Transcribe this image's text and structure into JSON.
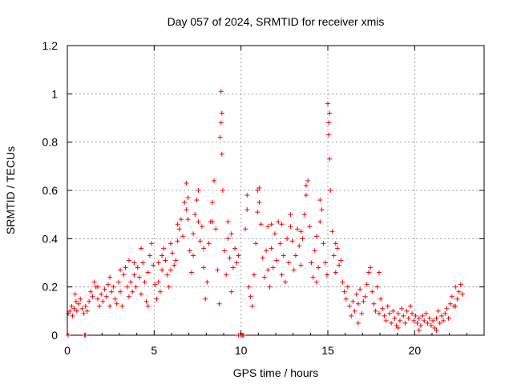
{
  "chart_data": {
    "type": "scatter",
    "title": "Day 057 of 2024, SRMTID for receiver xmis",
    "xlabel": "GPS time / hours",
    "ylabel": "SRMTID / TECUs",
    "xlim": [
      0,
      24
    ],
    "ylim": [
      0,
      1.2
    ],
    "xticks": [
      0,
      5,
      10,
      15,
      20
    ],
    "xtick_labels": [
      "0",
      "5",
      "10",
      "15",
      "20"
    ],
    "yticks": [
      0,
      0.2,
      0.4,
      0.6,
      0.8,
      1,
      1.2
    ],
    "ytick_labels": [
      "0",
      "0.2",
      "0.4",
      "0.6",
      "0.8",
      "1",
      "1.2"
    ],
    "grid": true,
    "marker": "+",
    "color": "#ff0000",
    "series": [
      {
        "name": "SRMTID",
        "points": [
          [
            0.05,
            0.09
          ],
          [
            0.15,
            0.1
          ],
          [
            0.25,
            0.12
          ],
          [
            0.3,
            0.08
          ],
          [
            0.4,
            0.11
          ],
          [
            0.5,
            0.14
          ],
          [
            0.55,
            0.1
          ],
          [
            0.65,
            0.13
          ],
          [
            0.75,
            0.15
          ],
          [
            0.85,
            0.11
          ],
          [
            0.95,
            0.09
          ],
          [
            1.05,
            0.12
          ],
          [
            1.15,
            0.1
          ],
          [
            1.25,
            0.14
          ],
          [
            1.35,
            0.18
          ],
          [
            1.45,
            0.16
          ],
          [
            1.55,
            0.22
          ],
          [
            1.65,
            0.2
          ],
          [
            1.75,
            0.15
          ],
          [
            1.85,
            0.12
          ],
          [
            1.95,
            0.17
          ],
          [
            2.05,
            0.14
          ],
          [
            2.15,
            0.19
          ],
          [
            2.25,
            0.16
          ],
          [
            2.35,
            0.21
          ],
          [
            2.45,
            0.24
          ],
          [
            2.55,
            0.18
          ],
          [
            2.65,
            0.2
          ],
          [
            2.75,
            0.15
          ],
          [
            2.85,
            0.13
          ],
          [
            2.95,
            0.22
          ],
          [
            3.05,
            0.18
          ],
          [
            3.15,
            0.12
          ],
          [
            3.25,
            0.25
          ],
          [
            3.35,
            0.28
          ],
          [
            3.45,
            0.2
          ],
          [
            3.55,
            0.31
          ],
          [
            3.65,
            0.22
          ],
          [
            3.75,
            0.18
          ],
          [
            3.85,
            0.25
          ],
          [
            3.95,
            0.2
          ],
          [
            4.05,
            0.28
          ],
          [
            4.15,
            0.24
          ],
          [
            4.25,
            0.17
          ],
          [
            4.35,
            0.3
          ],
          [
            4.45,
            0.22
          ],
          [
            4.55,
            0.14
          ],
          [
            4.65,
            0.26
          ],
          [
            4.75,
            0.33
          ],
          [
            4.85,
            0.38
          ],
          [
            4.95,
            0.29
          ],
          [
            5.05,
            0.21
          ],
          [
            5.15,
            0.15
          ],
          [
            5.25,
            0.22
          ],
          [
            5.35,
            0.18
          ],
          [
            5.45,
            0.27
          ],
          [
            5.55,
            0.36
          ],
          [
            5.65,
            0.31
          ],
          [
            5.75,
            0.25
          ],
          [
            5.85,
            0.2
          ],
          [
            5.95,
            0.38
          ],
          [
            6.05,
            0.34
          ],
          [
            6.15,
            0.29
          ],
          [
            6.25,
            0.31
          ],
          [
            6.35,
            0.39
          ],
          [
            6.45,
            0.44
          ],
          [
            6.55,
            0.48
          ],
          [
            6.65,
            0.41
          ],
          [
            6.75,
            0.55
          ],
          [
            6.85,
            0.63
          ],
          [
            6.95,
            0.48
          ],
          [
            7.05,
            0.35
          ],
          [
            7.15,
            0.26
          ],
          [
            7.25,
            0.42
          ],
          [
            7.35,
            0.5
          ],
          [
            7.45,
            0.56
          ],
          [
            7.55,
            0.47
          ],
          [
            7.65,
            0.39
          ],
          [
            7.75,
            0.45
          ],
          [
            7.85,
            0.28
          ],
          [
            7.95,
            0.15
          ],
          [
            8.05,
            0.22
          ],
          [
            8.15,
            0.38
          ],
          [
            8.25,
            0.47
          ],
          [
            8.35,
            0.55
          ],
          [
            8.45,
            0.64
          ],
          [
            8.55,
            0.44
          ],
          [
            8.65,
            0.27
          ],
          [
            8.75,
            0.13
          ],
          [
            8.8,
            0.82
          ],
          [
            8.85,
            1.01
          ],
          [
            8.9,
            0.92
          ],
          [
            8.95,
            0.6
          ],
          [
            9.05,
            0.35
          ],
          [
            9.15,
            0.25
          ],
          [
            9.25,
            0.4
          ],
          [
            9.35,
            0.32
          ],
          [
            9.45,
            0.18
          ],
          [
            9.55,
            0.28
          ],
          [
            9.65,
            0.36
          ],
          [
            9.75,
            0.3
          ],
          [
            9.85,
            0.33
          ],
          [
            9.95,
            0.0
          ],
          [
            10.05,
            0.0
          ],
          [
            10.15,
            0.0
          ],
          [
            10.25,
            0.44
          ],
          [
            10.35,
            0.52
          ],
          [
            10.45,
            0.2
          ],
          [
            10.55,
            0.16
          ],
          [
            10.65,
            0.12
          ],
          [
            10.75,
            0.25
          ],
          [
            10.85,
            0.38
          ],
          [
            10.95,
            0.6
          ],
          [
            11.05,
            0.55
          ],
          [
            11.15,
            0.46
          ],
          [
            11.25,
            0.32
          ],
          [
            11.35,
            0.24
          ],
          [
            11.45,
            0.35
          ],
          [
            11.55,
            0.27
          ],
          [
            11.65,
            0.2
          ],
          [
            11.75,
            0.36
          ],
          [
            11.85,
            0.28
          ],
          [
            11.95,
            0.42
          ],
          [
            12.05,
            0.31
          ],
          [
            12.15,
            0.47
          ],
          [
            12.25,
            0.38
          ],
          [
            12.35,
            0.25
          ],
          [
            12.45,
            0.33
          ],
          [
            12.55,
            0.22
          ],
          [
            12.65,
            0.4
          ],
          [
            12.75,
            0.3
          ],
          [
            12.85,
            0.45
          ],
          [
            12.95,
            0.39
          ],
          [
            13.05,
            0.27
          ],
          [
            13.15,
            0.33
          ],
          [
            13.25,
            0.44
          ],
          [
            13.35,
            0.37
          ],
          [
            13.45,
            0.29
          ],
          [
            13.55,
            0.4
          ],
          [
            13.65,
            0.5
          ],
          [
            13.75,
            0.58
          ],
          [
            13.85,
            0.64
          ],
          [
            13.95,
            0.45
          ],
          [
            14.05,
            0.3
          ],
          [
            14.15,
            0.24
          ],
          [
            14.25,
            0.35
          ],
          [
            14.35,
            0.22
          ],
          [
            14.45,
            0.28
          ],
          [
            14.55,
            0.56
          ],
          [
            14.65,
            0.52
          ],
          [
            14.75,
            0.38
          ],
          [
            14.85,
            0.3
          ],
          [
            14.95,
            0.25
          ],
          [
            15.0,
            0.96
          ],
          [
            15.05,
            0.88
          ],
          [
            15.1,
            0.73
          ],
          [
            15.15,
            0.6
          ],
          [
            15.25,
            0.43
          ],
          [
            15.35,
            0.33
          ],
          [
            15.45,
            0.26
          ],
          [
            15.55,
            0.36
          ],
          [
            15.65,
            0.29
          ],
          [
            15.75,
            0.31
          ],
          [
            15.85,
            0.22
          ],
          [
            15.95,
            0.18
          ],
          [
            16.05,
            0.15
          ],
          [
            16.15,
            0.2
          ],
          [
            16.25,
            0.12
          ],
          [
            16.35,
            0.08
          ],
          [
            16.45,
            0.14
          ],
          [
            16.55,
            0.1
          ],
          [
            16.65,
            0.17
          ],
          [
            16.75,
            0.13
          ],
          [
            16.85,
            0.19
          ],
          [
            16.95,
            0.09
          ],
          [
            17.05,
            0.14
          ],
          [
            17.15,
            0.16
          ],
          [
            17.25,
            0.21
          ],
          [
            17.35,
            0.26
          ],
          [
            17.45,
            0.28
          ],
          [
            17.55,
            0.18
          ],
          [
            17.65,
            0.13
          ],
          [
            17.75,
            0.1
          ],
          [
            17.85,
            0.2
          ],
          [
            17.95,
            0.26
          ],
          [
            18.05,
            0.15
          ],
          [
            18.15,
            0.11
          ],
          [
            18.25,
            0.08
          ],
          [
            18.35,
            0.06
          ],
          [
            18.45,
            0.12
          ],
          [
            18.55,
            0.09
          ],
          [
            18.65,
            0.05
          ],
          [
            18.75,
            0.1
          ],
          [
            18.85,
            0.07
          ],
          [
            18.95,
            0.04
          ],
          [
            19.05,
            0.09
          ],
          [
            19.15,
            0.06
          ],
          [
            19.25,
            0.11
          ],
          [
            19.35,
            0.08
          ],
          [
            19.45,
            0.05
          ],
          [
            19.55,
            0.1
          ],
          [
            19.65,
            0.07
          ],
          [
            19.75,
            0.12
          ],
          [
            19.85,
            0.09
          ],
          [
            19.95,
            0.06
          ],
          [
            20.05,
            0.08
          ],
          [
            20.15,
            0.05
          ],
          [
            20.25,
            0.07
          ],
          [
            20.35,
            0.04
          ],
          [
            20.45,
            0.08
          ],
          [
            20.55,
            0.06
          ],
          [
            20.65,
            0.09
          ],
          [
            20.75,
            0.05
          ],
          [
            20.85,
            0.07
          ],
          [
            20.95,
            0.04
          ],
          [
            21.05,
            0.06
          ],
          [
            21.15,
            0.03
          ],
          [
            21.25,
            0.07
          ],
          [
            21.35,
            0.1
          ],
          [
            21.45,
            0.05
          ],
          [
            21.55,
            0.08
          ],
          [
            21.65,
            0.06
          ],
          [
            21.75,
            0.09
          ],
          [
            21.85,
            0.11
          ],
          [
            21.95,
            0.07
          ],
          [
            22.05,
            0.13
          ],
          [
            22.15,
            0.16
          ],
          [
            22.25,
            0.12
          ],
          [
            22.35,
            0.2
          ],
          [
            22.45,
            0.15
          ],
          [
            22.55,
            0.18
          ],
          [
            22.65,
            0.21
          ],
          [
            22.75,
            0.17
          ],
          [
            0.05,
            0.0
          ],
          [
            1.0,
            0.0
          ],
          [
            1.05,
            0.0
          ],
          [
            9.85,
            0.0
          ],
          [
            10.1,
            0.0
          ],
          [
            3.85,
            0.3
          ],
          [
            4.25,
            0.36
          ],
          [
            5.45,
            0.33
          ],
          [
            6.35,
            0.46
          ],
          [
            6.95,
            0.57
          ],
          [
            7.55,
            0.6
          ],
          [
            8.35,
            0.47
          ],
          [
            8.85,
            0.88
          ],
          [
            8.9,
            0.75
          ],
          [
            10.35,
            0.58
          ],
          [
            11.05,
            0.61
          ],
          [
            11.55,
            0.45
          ],
          [
            12.35,
            0.46
          ],
          [
            13.75,
            0.62
          ],
          [
            14.55,
            0.47
          ],
          [
            15.05,
            0.83
          ],
          [
            15.1,
            0.92
          ],
          [
            6.85,
            0.52
          ],
          [
            7.85,
            0.36
          ],
          [
            9.25,
            0.47
          ],
          [
            10.95,
            0.51
          ],
          [
            12.85,
            0.5
          ],
          [
            13.45,
            0.43
          ],
          [
            14.35,
            0.41
          ],
          [
            15.45,
            0.38
          ],
          [
            3.55,
            0.16
          ],
          [
            2.45,
            0.12
          ],
          [
            1.75,
            0.2
          ],
          [
            4.65,
            0.12
          ],
          [
            5.95,
            0.27
          ],
          [
            16.75,
            0.05
          ],
          [
            17.95,
            0.09
          ],
          [
            19.05,
            0.03
          ],
          [
            20.25,
            0.02
          ],
          [
            21.25,
            0.02
          ],
          [
            22.35,
            0.12
          ],
          [
            0.45,
            0.17
          ],
          [
            3.05,
            0.27
          ],
          [
            5.25,
            0.3
          ],
          [
            7.25,
            0.33
          ],
          [
            9.45,
            0.42
          ],
          [
            11.75,
            0.46
          ]
        ]
      }
    ]
  }
}
